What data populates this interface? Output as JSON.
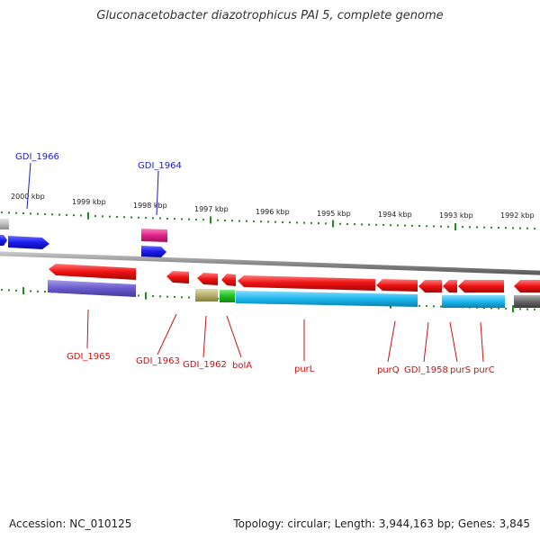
{
  "title": "Gluconacetobacter diazotrophicus PAI 5, complete genome",
  "footer": {
    "accession": "Accession: NC_010125",
    "stats": "Topology: circular; Length: 3,944,163 bp; Genes: 3,845"
  },
  "scale_labels": [
    "2000 kbp",
    "1999 kbp",
    "1998 kbp",
    "1997 kbp",
    "1996 kbp",
    "1995 kbp",
    "1994 kbp",
    "1993 kbp",
    "1992 kbp"
  ],
  "genes_top": [
    "GDI_1966",
    "GDI_1964"
  ],
  "genes_bottom": [
    "GDI_1965",
    "GDI_1963",
    "GDI_1962",
    "bolA",
    "purL",
    "purQ",
    "GDI_1958",
    "purS",
    "purC"
  ],
  "colors": {
    "forward_gene": "#1a1aee",
    "reverse_gene": "#ee1111",
    "forward_label": "#1a1acc",
    "reverse_label": "#cc1111",
    "tick": "#228b22",
    "backbone": "#8a8a8a",
    "magenta": "#e0208a",
    "purple": "#6a5acd",
    "olive": "#b5b070",
    "green": "#22bb22",
    "cyan": "#1ab8ee",
    "dark_gray": "#666666"
  }
}
